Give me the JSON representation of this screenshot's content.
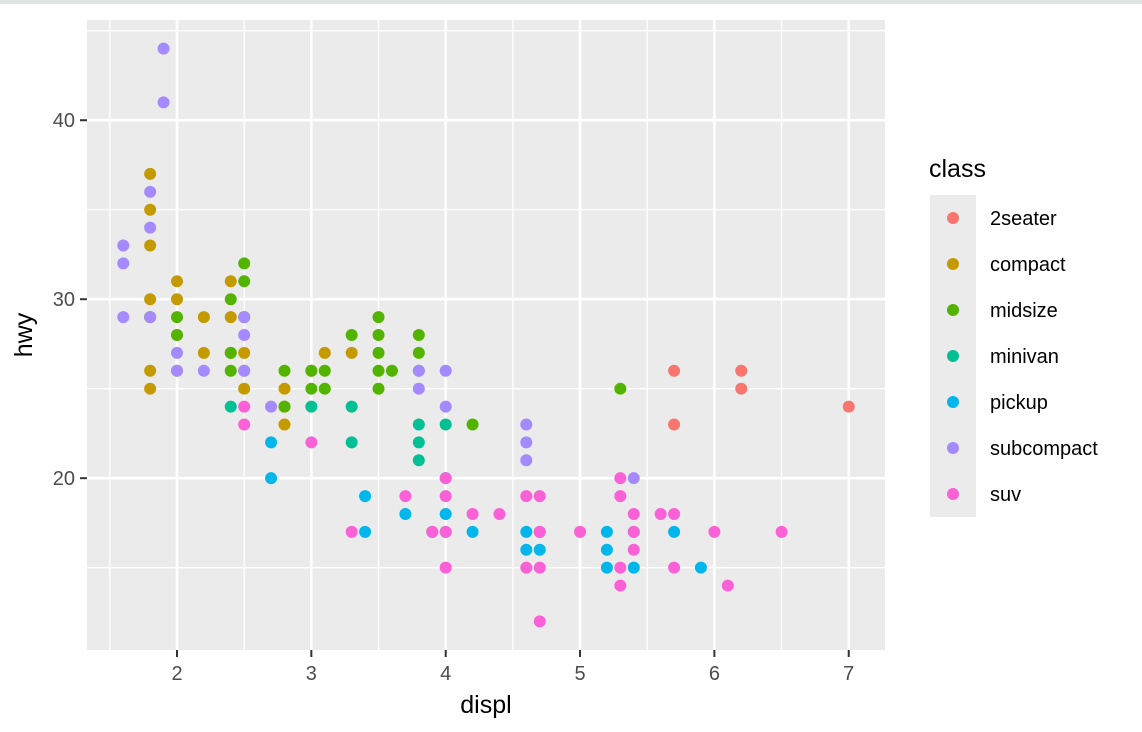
{
  "chart_data": {
    "type": "scatter",
    "title": "",
    "xlabel": "displ",
    "ylabel": "hwy",
    "xlim": [
      1.33,
      7.27
    ],
    "ylim": [
      10.4,
      45.6
    ],
    "x_ticks": [
      2,
      3,
      4,
      5,
      6,
      7
    ],
    "y_ticks": [
      20,
      30,
      40
    ],
    "grid": true,
    "legend_title": "class",
    "legend_position": "right",
    "series": [
      {
        "name": "2seater",
        "color": "#F8766D",
        "points": [
          [
            5.7,
            26
          ],
          [
            5.7,
            23
          ],
          [
            6.2,
            26
          ],
          [
            6.2,
            25
          ],
          [
            7.0,
            24
          ]
        ]
      },
      {
        "name": "compact",
        "color": "#C49A00",
        "points": [
          [
            1.8,
            37
          ],
          [
            1.8,
            35
          ],
          [
            1.8,
            33
          ],
          [
            1.8,
            30
          ],
          [
            1.8,
            29
          ],
          [
            1.8,
            26
          ],
          [
            1.8,
            25
          ],
          [
            2.0,
            31
          ],
          [
            2.0,
            30
          ],
          [
            2.0,
            28
          ],
          [
            2.0,
            26
          ],
          [
            2.2,
            29
          ],
          [
            2.2,
            27
          ],
          [
            2.4,
            31
          ],
          [
            2.4,
            29
          ],
          [
            2.4,
            27
          ],
          [
            2.5,
            29
          ],
          [
            2.5,
            27
          ],
          [
            2.5,
            26
          ],
          [
            2.5,
            25
          ],
          [
            2.8,
            25
          ],
          [
            2.8,
            24
          ],
          [
            2.8,
            23
          ],
          [
            3.0,
            26
          ],
          [
            3.1,
            27
          ],
          [
            3.3,
            27
          ]
        ]
      },
      {
        "name": "midsize",
        "color": "#53B400",
        "points": [
          [
            1.8,
            29
          ],
          [
            2.0,
            29
          ],
          [
            2.0,
            28
          ],
          [
            2.4,
            30
          ],
          [
            2.4,
            27
          ],
          [
            2.4,
            26
          ],
          [
            2.5,
            32
          ],
          [
            2.5,
            31
          ],
          [
            2.5,
            29
          ],
          [
            2.8,
            26
          ],
          [
            2.8,
            24
          ],
          [
            3.0,
            26
          ],
          [
            3.0,
            25
          ],
          [
            3.1,
            26
          ],
          [
            3.1,
            25
          ],
          [
            3.3,
            28
          ],
          [
            3.5,
            29
          ],
          [
            3.5,
            28
          ],
          [
            3.5,
            27
          ],
          [
            3.5,
            26
          ],
          [
            3.5,
            25
          ],
          [
            3.6,
            26
          ],
          [
            3.8,
            28
          ],
          [
            3.8,
            27
          ],
          [
            3.8,
            26
          ],
          [
            4.2,
            23
          ],
          [
            5.3,
            25
          ]
        ]
      },
      {
        "name": "minivan",
        "color": "#00C094",
        "points": [
          [
            2.4,
            24
          ],
          [
            3.0,
            24
          ],
          [
            3.3,
            24
          ],
          [
            3.3,
            22
          ],
          [
            3.8,
            23
          ],
          [
            3.8,
            22
          ],
          [
            3.8,
            21
          ],
          [
            4.0,
            23
          ]
        ]
      },
      {
        "name": "pickup",
        "color": "#00B6EB",
        "points": [
          [
            2.7,
            22
          ],
          [
            2.7,
            20
          ],
          [
            3.4,
            19
          ],
          [
            3.4,
            17
          ],
          [
            3.7,
            18
          ],
          [
            3.9,
            17
          ],
          [
            4.0,
            20
          ],
          [
            4.0,
            18
          ],
          [
            4.0,
            17
          ],
          [
            4.2,
            17
          ],
          [
            4.6,
            17
          ],
          [
            4.6,
            16
          ],
          [
            4.7,
            17
          ],
          [
            4.7,
            16
          ],
          [
            5.2,
            17
          ],
          [
            5.2,
            16
          ],
          [
            5.2,
            15
          ],
          [
            5.4,
            17
          ],
          [
            5.4,
            15
          ],
          [
            5.7,
            17
          ],
          [
            5.9,
            15
          ]
        ]
      },
      {
        "name": "subcompact",
        "color": "#A58AFF",
        "points": [
          [
            1.6,
            33
          ],
          [
            1.6,
            32
          ],
          [
            1.6,
            29
          ],
          [
            1.8,
            36
          ],
          [
            1.8,
            34
          ],
          [
            1.8,
            29
          ],
          [
            1.9,
            44
          ],
          [
            1.9,
            41
          ],
          [
            2.0,
            27
          ],
          [
            2.0,
            26
          ],
          [
            2.2,
            26
          ],
          [
            2.5,
            29
          ],
          [
            2.5,
            28
          ],
          [
            2.5,
            26
          ],
          [
            2.7,
            24
          ],
          [
            3.8,
            26
          ],
          [
            3.8,
            25
          ],
          [
            4.0,
            26
          ],
          [
            4.0,
            24
          ],
          [
            4.6,
            23
          ],
          [
            4.6,
            22
          ],
          [
            4.6,
            21
          ],
          [
            5.4,
            20
          ]
        ]
      },
      {
        "name": "suv",
        "color": "#FB61D7",
        "points": [
          [
            2.5,
            24
          ],
          [
            2.5,
            23
          ],
          [
            3.0,
            22
          ],
          [
            3.3,
            17
          ],
          [
            3.7,
            19
          ],
          [
            3.9,
            17
          ],
          [
            4.0,
            20
          ],
          [
            4.0,
            19
          ],
          [
            4.0,
            17
          ],
          [
            4.0,
            15
          ],
          [
            4.2,
            18
          ],
          [
            4.4,
            18
          ],
          [
            4.6,
            19
          ],
          [
            4.6,
            15
          ],
          [
            4.7,
            19
          ],
          [
            4.7,
            17
          ],
          [
            4.7,
            15
          ],
          [
            4.7,
            12
          ],
          [
            5.0,
            17
          ],
          [
            5.3,
            20
          ],
          [
            5.3,
            19
          ],
          [
            5.3,
            15
          ],
          [
            5.3,
            14
          ],
          [
            5.4,
            18
          ],
          [
            5.4,
            17
          ],
          [
            5.4,
            16
          ],
          [
            5.6,
            18
          ],
          [
            5.7,
            18
          ],
          [
            5.7,
            15
          ],
          [
            6.0,
            17
          ],
          [
            6.1,
            14
          ],
          [
            6.5,
            17
          ]
        ]
      }
    ]
  }
}
